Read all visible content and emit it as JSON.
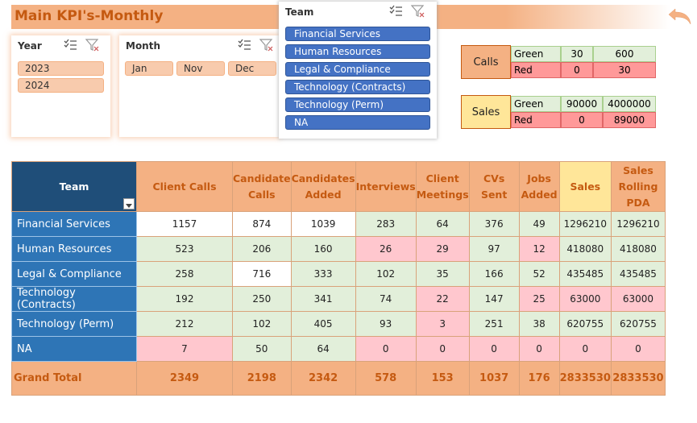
{
  "header": {
    "title": "Main KPI's-Monthly"
  },
  "slicers": {
    "year": {
      "title": "Year",
      "items": [
        "2023",
        "2024"
      ]
    },
    "month": {
      "title": "Month",
      "items": [
        "Jan",
        "Nov",
        "Dec"
      ]
    },
    "team": {
      "title": "Team",
      "items": [
        "Financial Services",
        "Human Resources",
        "Legal & Compliance",
        "Technology (Contracts)",
        "Technology (Perm)",
        "NA"
      ]
    }
  },
  "thresholds": {
    "calls": {
      "label": "Calls",
      "green": [
        "Green",
        "30",
        "600"
      ],
      "red": [
        "Red",
        "0",
        "30"
      ]
    },
    "sales": {
      "label": "Sales",
      "green": [
        "Green",
        "90000",
        "4000000"
      ],
      "red": [
        "Red",
        "0",
        "89000"
      ]
    }
  },
  "table": {
    "headers": [
      "Team",
      "Client Calls",
      "Candidate Calls",
      "Candidates Added",
      "Interviews",
      "Client Meetings",
      "CVs Sent",
      "Jobs Added",
      "Sales",
      "Sales Rolling PDA"
    ],
    "rows": [
      {
        "team": "Financial Services",
        "values": [
          "1157",
          "874",
          "1039",
          "283",
          "64",
          "376",
          "49",
          "1296210",
          "1296210"
        ],
        "colors": [
          "white",
          "white",
          "white",
          "green",
          "green",
          "green",
          "green",
          "green",
          "green"
        ]
      },
      {
        "team": "Human Resources",
        "values": [
          "523",
          "206",
          "160",
          "26",
          "29",
          "97",
          "12",
          "418080",
          "418080"
        ],
        "colors": [
          "green",
          "green",
          "green",
          "red",
          "red",
          "green",
          "red",
          "green",
          "green"
        ]
      },
      {
        "team": "Legal & Compliance",
        "values": [
          "258",
          "716",
          "333",
          "102",
          "35",
          "166",
          "52",
          "435485",
          "435485"
        ],
        "colors": [
          "green",
          "white",
          "green",
          "green",
          "green",
          "green",
          "green",
          "green",
          "green"
        ]
      },
      {
        "team": "Technology (Contracts)",
        "values": [
          "192",
          "250",
          "341",
          "74",
          "22",
          "147",
          "25",
          "63000",
          "63000"
        ],
        "colors": [
          "green",
          "green",
          "green",
          "green",
          "red",
          "green",
          "red",
          "red",
          "red"
        ]
      },
      {
        "team": "Technology (Perm)",
        "values": [
          "212",
          "102",
          "405",
          "93",
          "3",
          "251",
          "38",
          "620755",
          "620755"
        ],
        "colors": [
          "green",
          "green",
          "green",
          "green",
          "red",
          "green",
          "green",
          "green",
          "green"
        ]
      },
      {
        "team": "NA",
        "values": [
          "7",
          "50",
          "64",
          "0",
          "0",
          "0",
          "0",
          "0",
          "0"
        ],
        "colors": [
          "red",
          "green",
          "green",
          "red",
          "red",
          "red",
          "red",
          "red",
          "red"
        ]
      }
    ],
    "total": {
      "label": "Grand Total",
      "values": [
        "2349",
        "2198",
        "2342",
        "578",
        "153",
        "1037",
        "176",
        "2833530",
        "2833530"
      ]
    }
  }
}
